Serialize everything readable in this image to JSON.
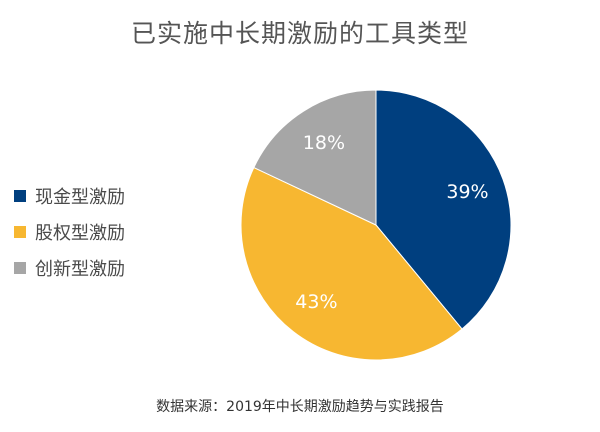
{
  "chart_data": {
    "type": "pie",
    "title": "已实施中长期激励的工具类型",
    "categories": [
      "现金型激励",
      "股权型激励",
      "创新型激励"
    ],
    "values": [
      39,
      43,
      18
    ],
    "labels": [
      "39%",
      "43%",
      "18%"
    ],
    "colors": [
      "#003f7f",
      "#f7b731",
      "#a6a6a6"
    ],
    "legend_position": "left",
    "start_angle_deg": 0,
    "direction": "clockwise"
  },
  "source": "数据来源：2019年中长期激励趋势与实践报告"
}
